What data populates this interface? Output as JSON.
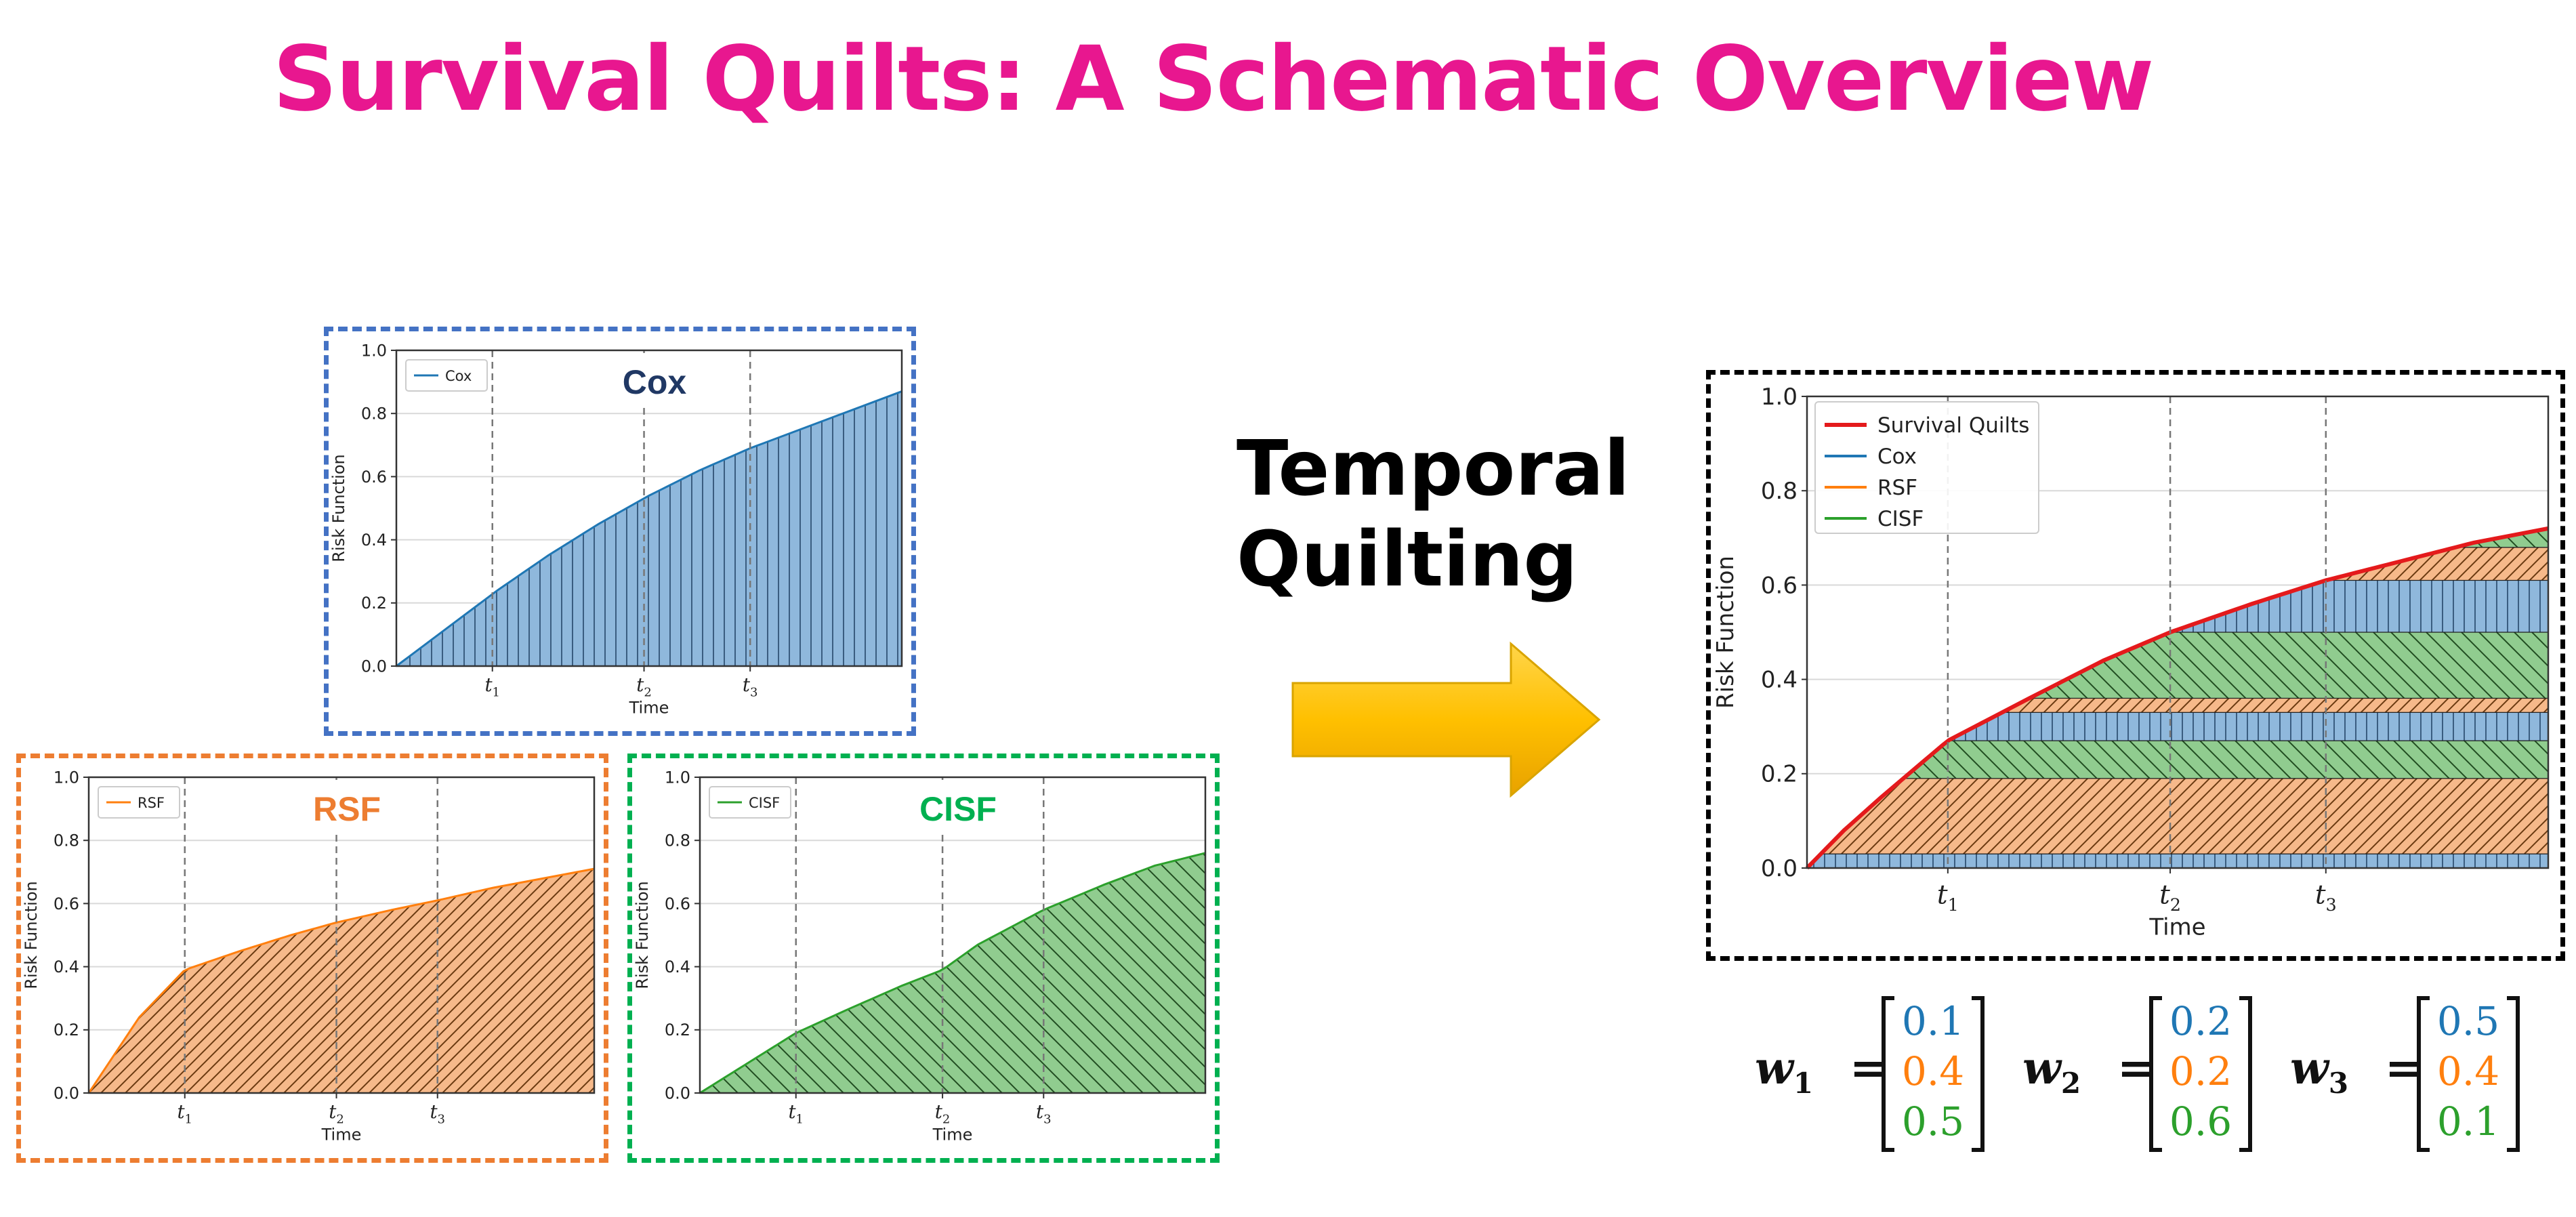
{
  "title": "Survival Quilts: A Schematic Overview",
  "arrow_label": {
    "line1": "Temporal",
    "line2": "Quilting"
  },
  "colors": {
    "cox": "#1f77b4",
    "rsf": "#ff7f0e",
    "cisf": "#2ca02c",
    "quilts": "#e41a1c",
    "title": "#e8178f"
  },
  "panels": [
    {
      "id": "cox",
      "model_label": "Cox",
      "legend": [
        "Cox"
      ],
      "ylabel": "Risk Function",
      "xlabel": "Time",
      "border": "#4472c4",
      "label_color": "#203864"
    },
    {
      "id": "rsf",
      "model_label": "RSF",
      "legend": [
        "RSF"
      ],
      "ylabel": "Risk Function",
      "xlabel": "Time",
      "border": "#ed7d31",
      "label_color": "#ed7d31"
    },
    {
      "id": "cisf",
      "model_label": "CISF",
      "legend": [
        "CISF"
      ],
      "ylabel": "Risk Function",
      "xlabel": "Time",
      "border": "#00b050",
      "label_color": "#00b050"
    },
    {
      "id": "quilt",
      "legend": [
        "Survival Quilts",
        "Cox",
        "RSF",
        "CISF"
      ],
      "ylabel": "Risk Function",
      "xlabel": "Time",
      "border": "#000000"
    }
  ],
  "weights": [
    {
      "label": "w",
      "sub": "1",
      "values": [
        "0.1",
        "0.4",
        "0.5"
      ]
    },
    {
      "label": "w",
      "sub": "2",
      "values": [
        "0.2",
        "0.2",
        "0.6"
      ]
    },
    {
      "label": "w",
      "sub": "3",
      "values": [
        "0.5",
        "0.4",
        "0.1"
      ]
    }
  ],
  "chart_data": [
    {
      "type": "area",
      "name": "cox",
      "yticks": [
        "0.0",
        "0.2",
        "0.4",
        "0.6",
        "0.8",
        "1.0"
      ],
      "xticks": [
        {
          "x": 0.19,
          "label": "t",
          "sub": "1"
        },
        {
          "x": 0.49,
          "label": "t",
          "sub": "2"
        },
        {
          "x": 0.7,
          "label": "t",
          "sub": "3"
        }
      ],
      "xlabel": "Time",
      "ylabel": "Risk Function",
      "xlim": [
        0,
        1
      ],
      "ylim": [
        0,
        1
      ],
      "series": [
        {
          "name": "Cox",
          "x": [
            0,
            0.05,
            0.1,
            0.2,
            0.3,
            0.4,
            0.5,
            0.6,
            0.7,
            0.8,
            0.9,
            1.0
          ],
          "y": [
            0,
            0.06,
            0.12,
            0.24,
            0.35,
            0.45,
            0.54,
            0.62,
            0.69,
            0.75,
            0.81,
            0.87
          ]
        }
      ]
    },
    {
      "type": "area",
      "name": "rsf",
      "yticks": [
        "0.0",
        "0.2",
        "0.4",
        "0.6",
        "0.8",
        "1.0"
      ],
      "xticks": [
        {
          "x": 0.19,
          "label": "t",
          "sub": "1"
        },
        {
          "x": 0.49,
          "label": "t",
          "sub": "2"
        },
        {
          "x": 0.69,
          "label": "t",
          "sub": "3"
        }
      ],
      "xlabel": "Time",
      "ylabel": "Risk Function",
      "xlim": [
        0,
        1
      ],
      "ylim": [
        0,
        1
      ],
      "series": [
        {
          "name": "RSF",
          "x": [
            0,
            0.05,
            0.1,
            0.19,
            0.3,
            0.4,
            0.49,
            0.6,
            0.69,
            0.8,
            0.9,
            1.0
          ],
          "y": [
            0,
            0.12,
            0.24,
            0.39,
            0.45,
            0.5,
            0.54,
            0.58,
            0.61,
            0.65,
            0.68,
            0.71
          ]
        }
      ]
    },
    {
      "type": "area",
      "name": "cisf",
      "yticks": [
        "0.0",
        "0.2",
        "0.4",
        "0.6",
        "0.8",
        "1.0"
      ],
      "xticks": [
        {
          "x": 0.19,
          "label": "t",
          "sub": "1"
        },
        {
          "x": 0.48,
          "label": "t",
          "sub": "2"
        },
        {
          "x": 0.68,
          "label": "t",
          "sub": "3"
        }
      ],
      "xlabel": "Time",
      "ylabel": "Risk Function",
      "xlim": [
        0,
        1
      ],
      "ylim": [
        0,
        1
      ],
      "series": [
        {
          "name": "CISF",
          "x": [
            0,
            0.1,
            0.19,
            0.3,
            0.4,
            0.48,
            0.55,
            0.68,
            0.8,
            0.9,
            1.0
          ],
          "y": [
            0,
            0.1,
            0.19,
            0.27,
            0.34,
            0.39,
            0.47,
            0.58,
            0.66,
            0.72,
            0.76
          ]
        }
      ]
    },
    {
      "type": "area",
      "name": "quilt",
      "yticks": [
        "0.0",
        "0.2",
        "0.4",
        "0.6",
        "0.8",
        "1.0"
      ],
      "xticks": [
        {
          "x": 0.19,
          "label": "t",
          "sub": "1"
        },
        {
          "x": 0.49,
          "label": "t",
          "sub": "2"
        },
        {
          "x": 0.7,
          "label": "t",
          "sub": "3"
        }
      ],
      "xlabel": "Time",
      "ylabel": "Risk Function",
      "xlim": [
        0,
        1
      ],
      "ylim": [
        0,
        1
      ],
      "envelope": {
        "name": "Survival Quilts",
        "x": [
          0,
          0.05,
          0.1,
          0.19,
          0.3,
          0.4,
          0.49,
          0.6,
          0.7,
          0.8,
          0.9,
          1.0
        ],
        "y": [
          0,
          0.08,
          0.15,
          0.27,
          0.36,
          0.44,
          0.5,
          0.56,
          0.61,
          0.65,
          0.69,
          0.72
        ]
      },
      "bands": [
        {
          "series": "Cox",
          "y0": 0.0,
          "y1": 0.03
        },
        {
          "series": "RSF",
          "y0": 0.03,
          "y1": 0.19
        },
        {
          "series": "CISF",
          "y0": 0.19,
          "y1": 0.27
        },
        {
          "series": "Cox",
          "y0": 0.27,
          "y1": 0.33
        },
        {
          "series": "RSF",
          "y0": 0.33,
          "y1": 0.36
        },
        {
          "series": "CISF",
          "y0": 0.36,
          "y1": 0.5
        },
        {
          "series": "Cox",
          "y0": 0.5,
          "y1": 0.61
        },
        {
          "series": "RSF",
          "y0": 0.61,
          "y1": 0.68
        },
        {
          "series": "CISF",
          "y0": 0.68,
          "y1": 0.72
        }
      ]
    }
  ]
}
